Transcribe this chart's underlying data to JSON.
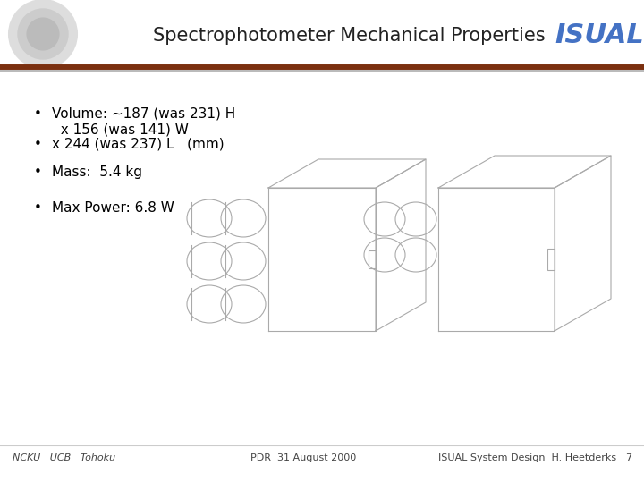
{
  "title": "Spectrophotometer Mechanical Properties",
  "isual_text": "ISUAL",
  "isual_color": "#4472C4",
  "title_color": "#222222",
  "header_bar_color": "#7B3010",
  "header_bar_color2": "#BBBBBB",
  "bg_color": "#FFFFFF",
  "bullet_line1": "Volume: ~187 (was 231) H",
  "bullet_line2": "  x 156 (was 141) W",
  "bullet_line3": "x 244 (was 237) L   (mm)",
  "bullet_line4": "Mass:  5.4 kg",
  "bullet_line5": "Max Power: 6.8 W",
  "footer_left": "NCKU   UCB   Tohoku",
  "footer_center": "PDR  31 August 2000",
  "footer_right": "ISUAL System Design  H. Heetderks",
  "footer_page": "7",
  "footer_color": "#444444",
  "device_line_color": "#AAAAAA",
  "title_fontsize": 15,
  "isual_fontsize": 22,
  "bullet_fontsize": 11,
  "footer_fontsize": 8
}
